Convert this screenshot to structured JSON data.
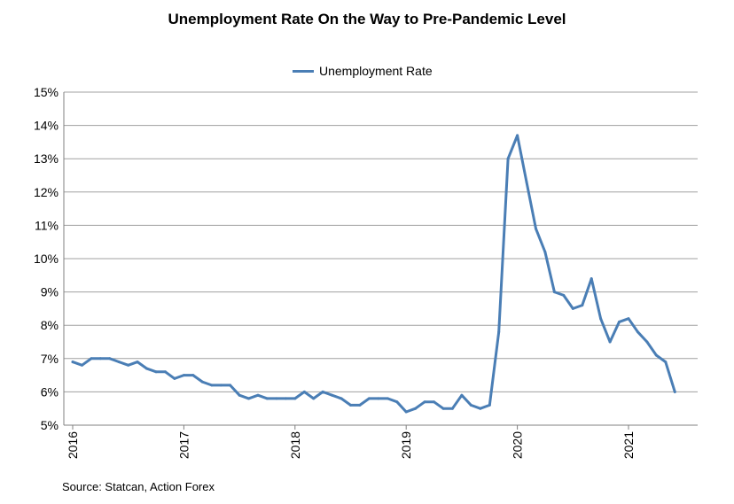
{
  "title": "Unemployment  Rate On the Way to Pre-Pandemic Level",
  "source": "Source: Statcan, Action Forex",
  "chart_data": {
    "type": "line",
    "title": "Unemployment  Rate On the Way to Pre-Pandemic Level",
    "xlabel": "",
    "ylabel": "",
    "ylim": [
      5,
      15
    ],
    "y_ticks": [
      "5%",
      "6%",
      "7%",
      "8%",
      "9%",
      "10%",
      "11%",
      "12%",
      "13%",
      "14%",
      "15%"
    ],
    "x_start": "2016-01",
    "x_ticks": [
      {
        "label": "2016",
        "index": 0
      },
      {
        "label": "2017",
        "index": 12
      },
      {
        "label": "2018",
        "index": 24
      },
      {
        "label": "2019",
        "index": 36
      },
      {
        "label": "2020",
        "index": 48
      },
      {
        "label": "2021",
        "index": 60
      }
    ],
    "legend": "top-center",
    "grid": true,
    "series": [
      {
        "name": "Unemployment Rate",
        "color": "#4a7eb5",
        "values": [
          6.9,
          6.8,
          7.0,
          7.0,
          7.0,
          6.9,
          6.8,
          6.9,
          6.7,
          6.6,
          6.6,
          6.4,
          6.5,
          6.5,
          6.3,
          6.2,
          6.2,
          6.2,
          5.9,
          5.8,
          5.9,
          5.8,
          5.8,
          5.8,
          5.8,
          6.0,
          5.8,
          6.0,
          5.9,
          5.8,
          5.6,
          5.6,
          5.8,
          5.8,
          5.8,
          5.7,
          5.4,
          5.5,
          5.7,
          5.7,
          5.5,
          5.5,
          5.9,
          5.6,
          5.5,
          5.6,
          7.8,
          13.0,
          13.7,
          12.3,
          10.9,
          10.2,
          9.0,
          8.9,
          8.5,
          8.6,
          9.4,
          8.2,
          7.5,
          8.1,
          8.2,
          7.8,
          7.5,
          7.1,
          6.9,
          6.0
        ]
      }
    ]
  }
}
